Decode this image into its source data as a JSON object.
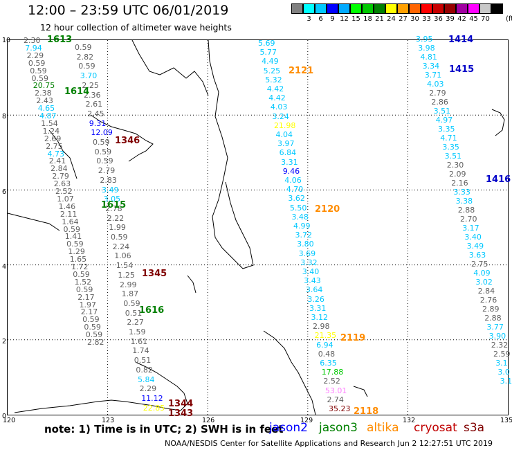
{
  "title": "12:00 – 23:59 UTC 06/01/2019",
  "subtitle": "12 hour collection of altimeter wave heights",
  "colorscale": {
    "colors": [
      "#808080",
      "#00ffff",
      "#00c8ff",
      "#0000ff",
      "#00aaff",
      "#00ff00",
      "#00c800",
      "#008000",
      "#ffff00",
      "#ffa000",
      "#ff6400",
      "#ff0000",
      "#c80000",
      "#960000",
      "#a000a0",
      "#ff00ff",
      "#c8c8c8",
      "#000000"
    ],
    "ticks": [
      "3",
      "6",
      "9",
      "12",
      "15",
      "18",
      "21",
      "24",
      "27",
      "30",
      "33",
      "36",
      "39",
      "42",
      "45",
      "70"
    ],
    "unit": "(ft)"
  },
  "axes": {
    "lon_labels": [
      "120",
      "123",
      "126",
      "129",
      "132",
      "135"
    ],
    "lat_labels": [
      "10",
      "8",
      "6",
      "4",
      "2",
      "0"
    ]
  },
  "swh_columns": [
    {
      "name": "col-1",
      "values": [
        {
          "v": "2.30",
          "c": "#606060"
        },
        {
          "v": "7.94",
          "c": "#00c8ff"
        },
        {
          "v": "2.29",
          "c": "#606060"
        },
        {
          "v": "0.59",
          "c": "#606060"
        },
        {
          "v": "0.59",
          "c": "#606060"
        },
        {
          "v": "0.59",
          "c": "#606060"
        },
        {
          "v": "20.75",
          "c": "#008000"
        },
        {
          "v": "2.38",
          "c": "#606060"
        },
        {
          "v": "2.43",
          "c": "#606060"
        },
        {
          "v": "4.65",
          "c": "#00c8ff"
        },
        {
          "v": "4.87",
          "c": "#00c8ff"
        },
        {
          "v": "1.54",
          "c": "#606060"
        },
        {
          "v": "1.24",
          "c": "#606060"
        },
        {
          "v": "2.69",
          "c": "#606060"
        },
        {
          "v": "2.75",
          "c": "#606060"
        },
        {
          "v": "4.73",
          "c": "#00c8ff"
        },
        {
          "v": "2.41",
          "c": "#606060"
        },
        {
          "v": "2.84",
          "c": "#606060"
        },
        {
          "v": "2.79",
          "c": "#606060"
        },
        {
          "v": "2.63",
          "c": "#606060"
        },
        {
          "v": "2.52",
          "c": "#606060"
        },
        {
          "v": "1.07",
          "c": "#606060"
        },
        {
          "v": "1.46",
          "c": "#606060"
        },
        {
          "v": "2.11",
          "c": "#606060"
        },
        {
          "v": "1.64",
          "c": "#606060"
        },
        {
          "v": "0.59",
          "c": "#606060"
        },
        {
          "v": "1.41",
          "c": "#606060"
        },
        {
          "v": "0.59",
          "c": "#606060"
        },
        {
          "v": "1.29",
          "c": "#606060"
        },
        {
          "v": "1.65",
          "c": "#606060"
        },
        {
          "v": "1.72",
          "c": "#606060"
        },
        {
          "v": "0.59",
          "c": "#606060"
        },
        {
          "v": "1.52",
          "c": "#606060"
        },
        {
          "v": "0.59",
          "c": "#606060"
        },
        {
          "v": "2.17",
          "c": "#606060"
        },
        {
          "v": "1.97",
          "c": "#606060"
        },
        {
          "v": "2.17",
          "c": "#606060"
        },
        {
          "v": "0.59",
          "c": "#606060"
        },
        {
          "v": "0.59",
          "c": "#606060"
        },
        {
          "v": "0.59",
          "c": "#606060"
        },
        {
          "v": "2.82",
          "c": "#606060"
        }
      ]
    },
    {
      "name": "col-2",
      "values": [
        {
          "v": "0.59",
          "c": "#606060"
        },
        {
          "v": "2.82",
          "c": "#606060"
        },
        {
          "v": "0.59",
          "c": "#606060"
        },
        {
          "v": "3.70",
          "c": "#00c8ff"
        },
        {
          "v": "2.25",
          "c": "#606060"
        },
        {
          "v": "2.36",
          "c": "#606060"
        },
        {
          "v": "2.61",
          "c": "#606060"
        },
        {
          "v": "2.45",
          "c": "#606060"
        },
        {
          "v": "9.31",
          "c": "#0000ff"
        },
        {
          "v": "12.09",
          "c": "#0000ff"
        },
        {
          "v": "0.59",
          "c": "#606060"
        },
        {
          "v": "0.59",
          "c": "#606060"
        },
        {
          "v": "0.59",
          "c": "#606060"
        },
        {
          "v": "2.79",
          "c": "#606060"
        },
        {
          "v": "2.83",
          "c": "#606060"
        },
        {
          "v": "3.49",
          "c": "#00c8ff"
        },
        {
          "v": "3.05",
          "c": "#00c8ff"
        },
        {
          "v": "2.78",
          "c": "#606060"
        },
        {
          "v": "2.22",
          "c": "#606060"
        },
        {
          "v": "1.99",
          "c": "#606060"
        },
        {
          "v": "0.59",
          "c": "#606060"
        },
        {
          "v": "2.24",
          "c": "#606060"
        },
        {
          "v": "1.06",
          "c": "#606060"
        },
        {
          "v": "1.54",
          "c": "#606060"
        },
        {
          "v": "1.25",
          "c": "#606060"
        },
        {
          "v": "2.99",
          "c": "#606060"
        },
        {
          "v": "1.87",
          "c": "#606060"
        },
        {
          "v": "0.59",
          "c": "#606060"
        },
        {
          "v": "0.51",
          "c": "#606060"
        },
        {
          "v": "2.27",
          "c": "#606060"
        },
        {
          "v": "1.59",
          "c": "#606060"
        },
        {
          "v": "1.61",
          "c": "#606060"
        },
        {
          "v": "1.74",
          "c": "#606060"
        },
        {
          "v": "0.51",
          "c": "#606060"
        },
        {
          "v": "0.82",
          "c": "#606060"
        },
        {
          "v": "5.84",
          "c": "#00c8ff"
        },
        {
          "v": "2.29",
          "c": "#606060"
        },
        {
          "v": "11.12",
          "c": "#0000ff"
        },
        {
          "v": "22.85",
          "c": "#ffff00"
        }
      ]
    },
    {
      "name": "col-3",
      "values": [
        {
          "v": "5.69",
          "c": "#00c8ff"
        },
        {
          "v": "5.77",
          "c": "#00c8ff"
        },
        {
          "v": "4.49",
          "c": "#00c8ff"
        },
        {
          "v": "5.25",
          "c": "#00c8ff"
        },
        {
          "v": "5.32",
          "c": "#00c8ff"
        },
        {
          "v": "4.42",
          "c": "#00c8ff"
        },
        {
          "v": "4.42",
          "c": "#00c8ff"
        },
        {
          "v": "4.03",
          "c": "#00c8ff"
        },
        {
          "v": "3.24",
          "c": "#00c8ff"
        },
        {
          "v": "21.98",
          "c": "#ffff00"
        },
        {
          "v": "4.04",
          "c": "#00c8ff"
        },
        {
          "v": "3.97",
          "c": "#00c8ff"
        },
        {
          "v": "6.84",
          "c": "#00c8ff"
        },
        {
          "v": "3.31",
          "c": "#00c8ff"
        },
        {
          "v": "9.46",
          "c": "#0000ff"
        },
        {
          "v": "4.06",
          "c": "#00c8ff"
        },
        {
          "v": "4.70",
          "c": "#00c8ff"
        },
        {
          "v": "3.62",
          "c": "#00c8ff"
        },
        {
          "v": "5.50",
          "c": "#00c8ff"
        },
        {
          "v": "3.48",
          "c": "#00c8ff"
        },
        {
          "v": "4.99",
          "c": "#00c8ff"
        },
        {
          "v": "3.72",
          "c": "#00c8ff"
        },
        {
          "v": "3.80",
          "c": "#00c8ff"
        },
        {
          "v": "3.69",
          "c": "#00c8ff"
        },
        {
          "v": "3.32",
          "c": "#00c8ff"
        },
        {
          "v": "3.40",
          "c": "#00c8ff"
        },
        {
          "v": "3.43",
          "c": "#00c8ff"
        },
        {
          "v": "3.64",
          "c": "#00c8ff"
        },
        {
          "v": "3.26",
          "c": "#00c8ff"
        },
        {
          "v": "3.31",
          "c": "#00c8ff"
        },
        {
          "v": "3.12",
          "c": "#00c8ff"
        },
        {
          "v": "2.98",
          "c": "#606060"
        },
        {
          "v": "21.35",
          "c": "#ffff00"
        },
        {
          "v": "6.94",
          "c": "#00c8ff"
        },
        {
          "v": "0.48",
          "c": "#606060"
        },
        {
          "v": "6.35",
          "c": "#00c8ff"
        },
        {
          "v": "17.88",
          "c": "#00c800"
        },
        {
          "v": "2.52",
          "c": "#606060"
        },
        {
          "v": "53.01",
          "c": "#ff80ff"
        },
        {
          "v": "2.74",
          "c": "#606060"
        },
        {
          "v": "35.23",
          "c": "#800000"
        }
      ]
    },
    {
      "name": "col-4",
      "values": [
        {
          "v": "3.95",
          "c": "#00c8ff"
        },
        {
          "v": "3.98",
          "c": "#00c8ff"
        },
        {
          "v": "4.81",
          "c": "#00c8ff"
        },
        {
          "v": "3.34",
          "c": "#00c8ff"
        },
        {
          "v": "3.71",
          "c": "#00c8ff"
        },
        {
          "v": "4.03",
          "c": "#00c8ff"
        },
        {
          "v": "2.79",
          "c": "#606060"
        },
        {
          "v": "2.86",
          "c": "#606060"
        },
        {
          "v": "3.51",
          "c": "#00c8ff"
        },
        {
          "v": "4.97",
          "c": "#00c8ff"
        },
        {
          "v": "3.35",
          "c": "#00c8ff"
        },
        {
          "v": "4.71",
          "c": "#00c8ff"
        },
        {
          "v": "3.35",
          "c": "#00c8ff"
        },
        {
          "v": "3.51",
          "c": "#00c8ff"
        },
        {
          "v": "2.30",
          "c": "#606060"
        },
        {
          "v": "2.09",
          "c": "#606060"
        },
        {
          "v": "2.16",
          "c": "#606060"
        },
        {
          "v": "3.33",
          "c": "#00c8ff"
        },
        {
          "v": "3.38",
          "c": "#00c8ff"
        },
        {
          "v": "2.88",
          "c": "#606060"
        },
        {
          "v": "2.70",
          "c": "#606060"
        },
        {
          "v": "3.17",
          "c": "#00c8ff"
        },
        {
          "v": "3.40",
          "c": "#00c8ff"
        },
        {
          "v": "3.49",
          "c": "#00c8ff"
        },
        {
          "v": "3.63",
          "c": "#00c8ff"
        },
        {
          "v": "2.75",
          "c": "#606060"
        },
        {
          "v": "4.09",
          "c": "#00c8ff"
        },
        {
          "v": "3.02",
          "c": "#00c8ff"
        },
        {
          "v": "2.84",
          "c": "#606060"
        },
        {
          "v": "2.76",
          "c": "#606060"
        },
        {
          "v": "2.89",
          "c": "#606060"
        },
        {
          "v": "2.88",
          "c": "#606060"
        },
        {
          "v": "3.77",
          "c": "#00c8ff"
        },
        {
          "v": "3.90",
          "c": "#00c8ff"
        },
        {
          "v": "2.32",
          "c": "#606060"
        },
        {
          "v": "2.59",
          "c": "#606060"
        },
        {
          "v": "3.1",
          "c": "#00c8ff"
        },
        {
          "v": "3.0",
          "c": "#00c8ff"
        },
        {
          "v": "3.1",
          "c": "#00c8ff"
        }
      ]
    }
  ],
  "pass_labels": [
    {
      "text": "1613",
      "c": "#008000"
    },
    {
      "text": "1614",
      "c": "#008000"
    },
    {
      "text": "1615",
      "c": "#008000"
    },
    {
      "text": "1616",
      "c": "#008000"
    },
    {
      "text": "1346",
      "c": "#800000"
    },
    {
      "text": "1345",
      "c": "#800000"
    },
    {
      "text": "1344",
      "c": "#800000"
    },
    {
      "text": "1343",
      "c": "#800000"
    },
    {
      "text": "2121",
      "c": "#ff8c00"
    },
    {
      "text": "2120",
      "c": "#ff8c00"
    },
    {
      "text": "2119",
      "c": "#ff8c00"
    },
    {
      "text": "2118",
      "c": "#ff8c00"
    },
    {
      "text": "1414",
      "c": "#0000c8"
    },
    {
      "text": "1415",
      "c": "#0000c8"
    },
    {
      "text": "1416",
      "c": "#0000c8"
    }
  ],
  "note": "note: 1) Time is in UTC; 2) SWH is in feet",
  "legend": [
    {
      "text": "jason2",
      "c": "#0000ff"
    },
    {
      "text": "jason3",
      "c": "#008000"
    },
    {
      "text": "altika",
      "c": "#ff8c00"
    },
    {
      "text": "cryosat",
      "c": "#c00000"
    },
    {
      "text": "s3a",
      "c": "#800000"
    }
  ],
  "credit": "NOAA/NESDIS Center for Satellite Applications and Research    Jun  2 12:27:51 UTC 2019"
}
